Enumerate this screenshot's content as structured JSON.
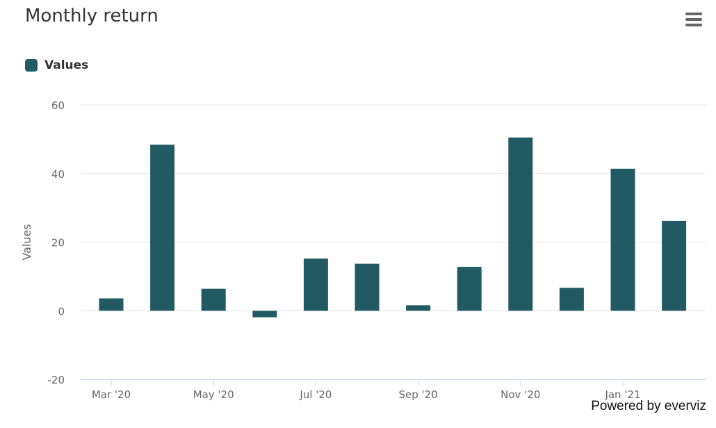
{
  "title": "Monthly return",
  "credits": "Powered by everviz",
  "menu": {
    "icon": "hamburger-menu-icon"
  },
  "colors": {
    "bar": "#225A63",
    "grid": "#e6e6e6",
    "axis": "#ccd6eb",
    "text": "#666666"
  },
  "chart_data": {
    "type": "bar",
    "title": "Monthly return",
    "xlabel": "",
    "ylabel": "Values",
    "ylim": [
      -20,
      60
    ],
    "yticks": [
      -20,
      0,
      20,
      40,
      60
    ],
    "grid": true,
    "legend_position": "top-left",
    "categories": [
      "Mar '20",
      "Apr '20",
      "May '20",
      "Jun '20",
      "Jul '20",
      "Aug '20",
      "Sep '20",
      "Oct '20",
      "Nov '20",
      "Dec '20",
      "Jan '21",
      "Feb '21"
    ],
    "x_tick_labels": [
      "Mar '20",
      "May '20",
      "Jul '20",
      "Sep '20",
      "Nov '20",
      "Jan '21"
    ],
    "series": [
      {
        "name": "Values",
        "values": [
          3.6,
          48.4,
          6.4,
          -1.9,
          15.2,
          13.7,
          1.6,
          12.8,
          50.5,
          6.7,
          41.4,
          26.2
        ]
      }
    ]
  }
}
